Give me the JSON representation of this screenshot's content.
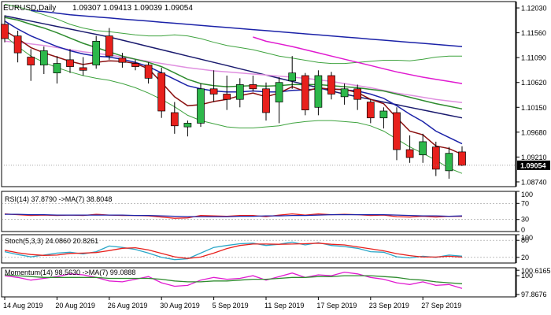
{
  "header": {
    "symbol_label": "EURUSD,Daily",
    "ohlc_text": "1.09307 1.09413 1.09039 1.09054"
  },
  "colors": {
    "bull_candle": "#2db84a",
    "bear_candle": "#e8201c",
    "wick": "#000000",
    "ma_blue": "#1b22a8",
    "ma_darkred": "#8b1010",
    "ma_green": "#2e8b2e",
    "ma_navy": "#1a1a6e",
    "ma_magenta": "#e01ad0",
    "bb_band": "#3fa33f",
    "pink_line": "#e090e0",
    "price_tag_bg": "#000000",
    "price_tag_fg": "#ffffff"
  },
  "chart_data": [
    {
      "type": "candlestick",
      "panel": "main",
      "x_tick_labels": [
        "14 Aug 2019",
        "20 Aug 2019",
        "26 Aug 2019",
        "30 Aug 2019",
        "5 Sep 2019",
        "11 Sep 2019",
        "17 Sep 2019",
        "23 Sep 2019",
        "27 Sep 2019"
      ],
      "x_tick_index": [
        0,
        4,
        8,
        12,
        16,
        20,
        24,
        28,
        32
      ],
      "y_ticks": [
        1.1203,
        1.1156,
        1.1109,
        1.1062,
        1.1015,
        1.0968,
        1.0921,
        1.0874
      ],
      "ylim": [
        1.0865,
        1.1215
      ],
      "current_price": 1.09054,
      "candles": [
        {
          "o": 1.1172,
          "h": 1.1189,
          "l": 1.1138,
          "c": 1.1145
        },
        {
          "o": 1.115,
          "h": 1.116,
          "l": 1.11,
          "c": 1.1118
        },
        {
          "o": 1.111,
          "h": 1.1125,
          "l": 1.1065,
          "c": 1.1095
        },
        {
          "o": 1.1095,
          "h": 1.113,
          "l": 1.1078,
          "c": 1.1122
        },
        {
          "o": 1.108,
          "h": 1.1112,
          "l": 1.106,
          "c": 1.1098
        },
        {
          "o": 1.1105,
          "h": 1.1125,
          "l": 1.108,
          "c": 1.1092
        },
        {
          "o": 1.109,
          "h": 1.111,
          "l": 1.1075,
          "c": 1.1085
        },
        {
          "o": 1.1095,
          "h": 1.115,
          "l": 1.1088,
          "c": 1.114
        },
        {
          "o": 1.115,
          "h": 1.1165,
          "l": 1.1105,
          "c": 1.1112
        },
        {
          "o": 1.1108,
          "h": 1.1118,
          "l": 1.109,
          "c": 1.11
        },
        {
          "o": 1.1098,
          "h": 1.1105,
          "l": 1.1085,
          "c": 1.1092
        },
        {
          "o": 1.1095,
          "h": 1.11,
          "l": 1.106,
          "c": 1.107
        },
        {
          "o": 1.108,
          "h": 1.109,
          "l": 1.0995,
          "c": 1.1008
        },
        {
          "o": 1.1005,
          "h": 1.1025,
          "l": 1.0965,
          "c": 1.098
        },
        {
          "o": 1.0978,
          "h": 1.099,
          "l": 1.096,
          "c": 1.0985
        },
        {
          "o": 1.0985,
          "h": 1.106,
          "l": 1.0978,
          "c": 1.105
        },
        {
          "o": 1.105,
          "h": 1.1085,
          "l": 1.1025,
          "c": 1.104
        },
        {
          "o": 1.104,
          "h": 1.1075,
          "l": 1.101,
          "c": 1.103
        },
        {
          "o": 1.103,
          "h": 1.107,
          "l": 1.1015,
          "c": 1.1058
        },
        {
          "o": 1.1058,
          "h": 1.1075,
          "l": 1.1045,
          "c": 1.105
        },
        {
          "o": 1.105,
          "h": 1.1062,
          "l": 1.099,
          "c": 1.1005
        },
        {
          "o": 1.1025,
          "h": 1.1072,
          "l": 1.0985,
          "c": 1.1062
        },
        {
          "o": 1.1065,
          "h": 1.1112,
          "l": 1.105,
          "c": 1.108
        },
        {
          "o": 1.1075,
          "h": 1.108,
          "l": 1.1,
          "c": 1.101
        },
        {
          "o": 1.1015,
          "h": 1.1085,
          "l": 1.1,
          "c": 1.1075
        },
        {
          "o": 1.1075,
          "h": 1.1082,
          "l": 1.103,
          "c": 1.104
        },
        {
          "o": 1.1035,
          "h": 1.106,
          "l": 1.102,
          "c": 1.105
        },
        {
          "o": 1.105,
          "h": 1.1058,
          "l": 1.101,
          "c": 1.103
        },
        {
          "o": 1.1025,
          "h": 1.103,
          "l": 1.0985,
          "c": 1.0995
        },
        {
          "o": 1.0995,
          "h": 1.1015,
          "l": 1.0975,
          "c": 1.1008
        },
        {
          "o": 1.1005,
          "h": 1.1015,
          "l": 1.0915,
          "c": 1.0935
        },
        {
          "o": 1.0935,
          "h": 1.0962,
          "l": 1.091,
          "c": 1.092
        },
        {
          "o": 1.0925,
          "h": 1.0965,
          "l": 1.091,
          "c": 1.095
        },
        {
          "o": 1.094,
          "h": 1.095,
          "l": 1.0885,
          "c": 1.0898
        },
        {
          "o": 1.0895,
          "h": 1.094,
          "l": 1.088,
          "c": 1.0928
        },
        {
          "o": 1.09307,
          "h": 1.09413,
          "l": 1.09039,
          "c": 1.09054
        }
      ],
      "lines": [
        {
          "name": "ma-navy",
          "color_key": "ma_navy",
          "values": [
            1.1188,
            1.1183,
            1.1178,
            1.1173,
            1.1168,
            1.1163,
            1.1158,
            1.1153,
            1.1148,
            1.1142,
            1.1136,
            1.113,
            1.1124,
            1.1118,
            1.1112,
            1.1106,
            1.11,
            1.1094,
            1.1088,
            1.1082,
            1.1076,
            1.107,
            1.1064,
            1.1058,
            1.1052,
            1.1046,
            1.104,
            1.1035,
            1.103,
            1.1025,
            1.102,
            1.1015,
            1.101,
            1.1005,
            1.1,
            1.0995
          ]
        },
        {
          "name": "ma-pink",
          "color_key": "pink_line",
          "values": [
            1.114,
            1.1138,
            1.1135,
            1.1132,
            1.1128,
            1.1124,
            1.112,
            1.1117,
            1.1114,
            1.111,
            1.1106,
            1.1102,
            1.1098,
            1.1094,
            1.109,
            1.1087,
            1.1084,
            1.1082,
            1.108,
            1.1078,
            1.1076,
            1.1074,
            1.1072,
            1.107,
            1.1067,
            1.1064,
            1.106,
            1.1056,
            1.1052,
            1.1047,
            1.1042,
            1.1038,
            1.1034,
            1.103,
            1.1027,
            1.1024
          ]
        },
        {
          "name": "ma-blue",
          "color_key": "ma_blue",
          "values": [
            1.1178,
            1.1163,
            1.115,
            1.114,
            1.113,
            1.1122,
            1.1116,
            1.1112,
            1.111,
            1.1106,
            1.11,
            1.1092,
            1.108,
            1.1068,
            1.1056,
            1.105,
            1.1046,
            1.1044,
            1.1044,
            1.1046,
            1.1044,
            1.1044,
            1.1047,
            1.1048,
            1.105,
            1.105,
            1.1048,
            1.1046,
            1.104,
            1.1032,
            1.1018,
            1.1002,
            1.0988,
            1.097,
            1.0958,
            1.0946
          ]
        },
        {
          "name": "ma-darkred",
          "color_key": "ma_darkred",
          "values": [
            1.116,
            1.1145,
            1.1128,
            1.1118,
            1.111,
            1.1102,
            1.1096,
            1.11,
            1.1103,
            1.1102,
            1.1098,
            1.1088,
            1.1062,
            1.1035,
            1.1018,
            1.102,
            1.1026,
            1.103,
            1.1037,
            1.1042,
            1.1035,
            1.1042,
            1.1054,
            1.1045,
            1.1052,
            1.1049,
            1.1049,
            1.1043,
            1.103,
            1.1022,
            1.0995,
            1.097,
            1.0963,
            1.0942,
            1.0937,
            1.0926
          ]
        },
        {
          "name": "ma-green",
          "color_key": "ma_green",
          "values": [
            1.1185,
            1.118,
            1.1172,
            1.1165,
            1.1156,
            1.1146,
            1.1136,
            1.1128,
            1.112,
            1.1112,
            1.1106,
            1.11,
            1.1092,
            1.108,
            1.1068,
            1.106,
            1.1056,
            1.1054,
            1.1055,
            1.1056,
            1.1055,
            1.1056,
            1.1058,
            1.1058,
            1.1058,
            1.1056,
            1.1054,
            1.1052,
            1.1049,
            1.1046,
            1.104,
            1.1034,
            1.1028,
            1.1022,
            1.1017,
            1.1012
          ]
        },
        {
          "name": "bb-upper",
          "color_key": "bb_band",
          "values": [
            1.121,
            1.1205,
            1.1198,
            1.119,
            1.1182,
            1.1172,
            1.1165,
            1.116,
            1.1158,
            1.1155,
            1.1152,
            1.115,
            1.115,
            1.1152,
            1.115,
            1.1145,
            1.1138,
            1.1132,
            1.1128,
            1.1124,
            1.1118,
            1.1112,
            1.1108,
            1.1104,
            1.11,
            1.1098,
            1.1098,
            1.11,
            1.1102,
            1.1104,
            1.1104,
            1.1103,
            1.1106,
            1.111,
            1.1112,
            1.1112
          ]
        },
        {
          "name": "bb-lower",
          "color_key": "bb_band",
          "values": [
            1.115,
            1.113,
            1.1112,
            1.11,
            1.109,
            1.1082,
            1.1075,
            1.107,
            1.1066,
            1.106,
            1.1052,
            1.1042,
            1.103,
            1.1016,
            1.1,
            1.099,
            1.0984,
            1.0978,
            1.0976,
            1.0976,
            1.0978,
            1.098,
            1.0985,
            1.0988,
            1.099,
            1.099,
            1.0988,
            1.0986,
            1.098,
            1.097,
            1.0955,
            1.094,
            1.0928,
            1.0915,
            1.09,
            1.089
          ]
        },
        {
          "name": "ma-magenta",
          "color_key": "ma_magenta",
          "values": [
            null,
            null,
            null,
            null,
            null,
            null,
            null,
            null,
            null,
            null,
            null,
            null,
            null,
            null,
            null,
            null,
            null,
            null,
            null,
            1.1148,
            1.114,
            1.1135,
            1.113,
            1.1124,
            1.1118,
            1.1112,
            1.1106,
            1.11,
            1.1094,
            1.1088,
            1.1082,
            1.1077,
            1.1072,
            1.1068,
            1.1064,
            1.106
          ]
        },
        {
          "name": "ma-upper-navy",
          "color_key": "ma_blue",
          "values": [
            null,
            null,
            1.1198,
            1.1196,
            1.1193,
            1.119,
            1.1188,
            1.1186,
            1.1184,
            1.1182,
            1.118,
            1.1178,
            1.1176,
            1.1174,
            1.1172,
            1.117,
            1.1168,
            1.1166,
            1.1164,
            1.1162,
            1.116,
            1.1158,
            1.1156,
            1.1154,
            1.1152,
            1.115,
            1.1148,
            1.1146,
            1.1144,
            1.1142,
            1.114,
            1.1138,
            1.1136,
            1.1134,
            1.1132,
            1.113
          ]
        }
      ]
    },
    {
      "type": "line",
      "panel": "rsi",
      "title": "RSI(14) 37.8790 ->MA(7) 38.8048",
      "y_ticks": [
        100,
        70,
        30,
        0
      ],
      "ylim": [
        0,
        100
      ],
      "levels": [
        70,
        30
      ],
      "series": [
        {
          "name": "RSI(14)",
          "color": "#e8201c",
          "values": [
            44,
            42,
            40,
            41,
            40,
            41,
            40,
            43,
            41,
            40,
            40,
            39,
            36,
            33,
            34,
            40,
            39,
            38,
            40,
            40,
            37,
            41,
            44,
            41,
            44,
            42,
            43,
            42,
            40,
            41,
            37,
            36,
            38,
            36,
            38,
            37.879
          ]
        },
        {
          "name": "MA(7)",
          "color": "#1b22a8",
          "values": [
            43,
            43,
            42,
            42,
            41,
            41,
            41,
            41,
            41,
            41,
            40,
            40,
            39,
            38,
            37,
            37,
            37,
            37,
            38,
            38,
            39,
            39,
            40,
            40,
            41,
            42,
            42,
            42,
            42,
            42,
            41,
            40,
            39,
            39,
            38,
            38.8048
          ]
        }
      ]
    },
    {
      "type": "line",
      "panel": "stoch",
      "title": "Stoch(5,3,3) 24.0860 20.8261",
      "y_ticks": [
        100,
        80,
        20
      ],
      "ylim": [
        0,
        100
      ],
      "levels": [
        80,
        20
      ],
      "series": [
        {
          "name": "%K",
          "color": "#2aa6c8",
          "values": [
            40,
            30,
            22,
            28,
            35,
            38,
            32,
            40,
            60,
            55,
            48,
            35,
            20,
            12,
            15,
            35,
            55,
            62,
            68,
            70,
            62,
            66,
            74,
            64,
            72,
            62,
            58,
            52,
            40,
            38,
            22,
            18,
            24,
            20,
            28,
            24.086
          ]
        },
        {
          "name": "%D",
          "color": "#e8201c",
          "values": [
            45,
            36,
            30,
            27,
            28,
            34,
            35,
            37,
            44,
            52,
            54,
            46,
            34,
            22,
            16,
            21,
            35,
            51,
            62,
            67,
            67,
            66,
            67,
            68,
            70,
            66,
            64,
            57,
            50,
            43,
            33,
            26,
            21,
            21,
            24,
            20.8261
          ]
        }
      ]
    },
    {
      "type": "line",
      "panel": "momentum",
      "title": "Momentum(14) 98.5630 ->MA(7) 99.0888",
      "y_ticks": [
        100.6165,
        100,
        97.8676
      ],
      "ylim": [
        97.6,
        100.9
      ],
      "series": [
        {
          "name": "Momentum(14)",
          "color": "#e01ad0",
          "values": [
            100.0,
            99.8,
            99.5,
            99.7,
            99.9,
            100.2,
            100.1,
            99.8,
            99.4,
            99.3,
            99.6,
            99.9,
            99.2,
            98.8,
            98.9,
            99.5,
            99.8,
            99.6,
            99.7,
            100.0,
            99.5,
            99.9,
            100.3,
            99.8,
            100.1,
            100.0,
            100.4,
            100.2,
            99.8,
            99.6,
            99.2,
            99.0,
            99.3,
            98.9,
            99.0,
            98.563
          ]
        },
        {
          "name": "MA(7)",
          "color": "#2e8b2e",
          "values": [
            100.1,
            100.0,
            99.9,
            99.8,
            99.8,
            99.8,
            99.8,
            99.8,
            99.7,
            99.7,
            99.7,
            99.7,
            99.6,
            99.4,
            99.3,
            99.3,
            99.4,
            99.4,
            99.5,
            99.6,
            99.6,
            99.7,
            99.8,
            99.8,
            99.9,
            99.9,
            100.0,
            100.0,
            100.0,
            99.9,
            99.8,
            99.6,
            99.5,
            99.3,
            99.2,
            99.0888
          ]
        }
      ]
    }
  ]
}
